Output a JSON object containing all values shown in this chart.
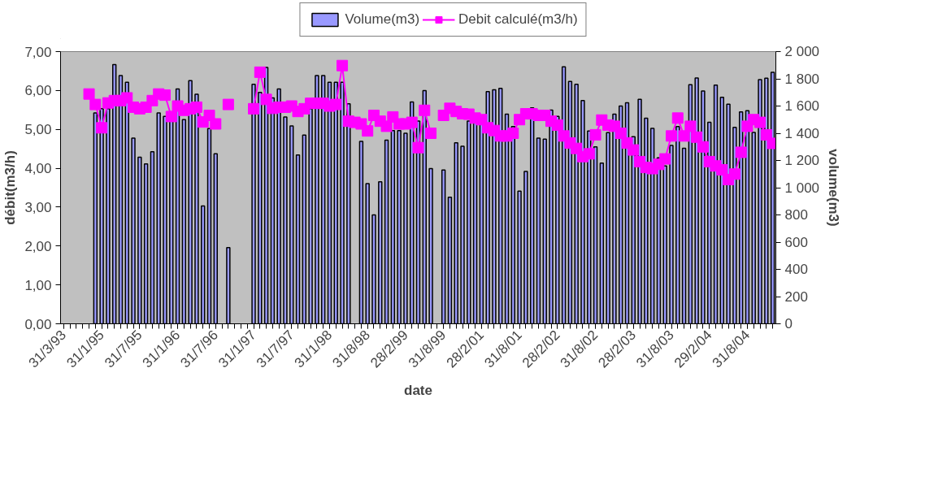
{
  "chart_data": {
    "type": "bar",
    "xlabel": "date",
    "ylabel": "débit(m3/h)",
    "y2label": "volume(m3)",
    "categories": [
      "31/3/93",
      null,
      null,
      null,
      null,
      null,
      "31/1/95",
      null,
      null,
      null,
      null,
      null,
      "31/7/95",
      null,
      null,
      null,
      null,
      null,
      "31/1/96",
      null,
      null,
      null,
      null,
      null,
      "31/7/96",
      null,
      null,
      null,
      null,
      null,
      "31/1/97",
      null,
      null,
      null,
      null,
      null,
      "31/7/97",
      null,
      null,
      null,
      null,
      null,
      "31/1/98",
      null,
      null,
      null,
      null,
      null,
      "31/8/98",
      null,
      null,
      null,
      null,
      null,
      "28/2/99",
      null,
      null,
      null,
      null,
      null,
      "31/8/99",
      null,
      null,
      null,
      null,
      null,
      "28/2/01",
      null,
      null,
      null,
      null,
      null,
      "31/8/01",
      null,
      null,
      null,
      null,
      null,
      "28/2/02",
      null,
      null,
      null,
      null,
      null,
      "31/8/02",
      null,
      null,
      null,
      null,
      null,
      "28/2/03",
      null,
      null,
      null,
      null,
      null,
      "31/8/03",
      null,
      null,
      null,
      null,
      null,
      "29/2/04",
      null,
      null,
      null,
      null,
      null,
      "31/8/04",
      null,
      null,
      null,
      null
    ],
    "series": [
      {
        "name": "Volume(m3)",
        "axis": "y2",
        "color": "#9999ff",
        "values": [
          null,
          null,
          null,
          null,
          null,
          1550,
          1580,
          1580,
          1904,
          1824,
          1774,
          1364,
          1224,
          1174,
          1264,
          1550,
          1524,
          1500,
          1726,
          1500,
          1786,
          1686,
          866,
          1434,
          1250,
          null,
          560,
          null,
          null,
          null,
          1760,
          1700,
          1884,
          1660,
          1726,
          1520,
          1454,
          1240,
          1386,
          1580,
          1824,
          1824,
          1774,
          1774,
          1774,
          1616,
          null,
          1340,
          1030,
          800,
          1044,
          1350,
          1420,
          1420,
          1400,
          1630,
          1490,
          1714,
          1140,
          null,
          1130,
          930,
          1330,
          1304,
          1490,
          1480,
          1480,
          1706,
          1720,
          1730,
          1540,
          1450,
          974,
          1120,
          1586,
          1364,
          1356,
          1570,
          1524,
          1888,
          1780,
          1760,
          1640,
          1416,
          1300,
          1180,
          1404,
          1540,
          1600,
          1624,
          1374,
          1650,
          1510,
          1436,
          1220,
          1160,
          1310,
          1450,
          1290,
          1756,
          1806,
          1710,
          1480,
          1754,
          1664,
          1614,
          1444,
          1556,
          1566,
          1406,
          1794,
          1804,
          1848
        ]
      },
      {
        "name": "Debit calculé(m3/h)",
        "type": "line",
        "marker": "square",
        "color": "#ff00ff",
        "values": [
          null,
          null,
          null,
          null,
          5.91,
          5.64,
          5.04,
          5.68,
          5.74,
          5.74,
          5.81,
          5.57,
          5.53,
          5.57,
          5.74,
          5.91,
          5.88,
          5.33,
          5.6,
          5.49,
          5.53,
          5.57,
          5.19,
          5.36,
          5.14,
          null,
          5.64,
          null,
          null,
          null,
          5.53,
          6.47,
          5.77,
          5.54,
          5.57,
          5.57,
          5.6,
          5.46,
          5.53,
          5.67,
          5.67,
          5.67,
          5.6,
          5.64,
          6.64,
          5.21,
          5.18,
          5.14,
          4.96,
          5.36,
          5.21,
          5.08,
          5.32,
          5.14,
          5.14,
          5.18,
          4.53,
          5.49,
          4.9,
          null,
          5.36,
          5.54,
          5.46,
          5.4,
          5.39,
          5.29,
          5.25,
          5.04,
          4.97,
          4.83,
          4.83,
          4.9,
          5.25,
          5.4,
          5.4,
          5.36,
          5.36,
          5.21,
          5.11,
          4.83,
          4.65,
          4.51,
          4.3,
          4.37,
          4.86,
          5.24,
          5.11,
          5.08,
          4.9,
          4.65,
          4.47,
          4.17,
          4.02,
          3.99,
          4.1,
          4.24,
          4.83,
          5.29,
          4.83,
          5.08,
          4.8,
          4.55,
          4.17,
          4.06,
          3.96,
          3.71,
          3.85,
          4.41,
          5.08,
          5.25,
          5.18,
          4.86,
          4.64
        ]
      }
    ],
    "ylim": [
      0,
      7
    ],
    "yticks": [
      {
        "value": 0,
        "label": "0,00"
      },
      {
        "value": 1,
        "label": "1,00"
      },
      {
        "value": 2,
        "label": "2,00"
      },
      {
        "value": 3,
        "label": "3,00"
      },
      {
        "value": 4,
        "label": "4,00"
      },
      {
        "value": 5,
        "label": "5,00"
      },
      {
        "value": 6,
        "label": "6,00"
      },
      {
        "value": 7,
        "label": "7,00"
      }
    ],
    "y2lim": [
      0,
      2000
    ],
    "y2ticks": [
      0,
      200,
      400,
      600,
      800,
      {
        "value": 1000,
        "label": "1 000"
      },
      {
        "value": 1200,
        "label": "1 200"
      },
      {
        "value": 1400,
        "label": "1 400"
      },
      {
        "value": 1600,
        "label": "1 600"
      },
      {
        "value": 1800,
        "label": "1 800"
      },
      {
        "value": 2000,
        "label": "2 000"
      }
    ],
    "grid": false,
    "legend": "top"
  }
}
